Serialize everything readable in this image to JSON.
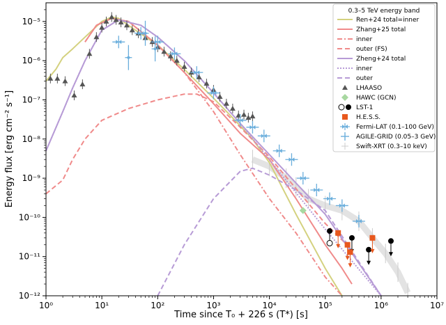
{
  "chart_data": {
    "type": "line",
    "x_scale": "log",
    "y_scale": "log",
    "xlim": [
      1,
      10000000
    ],
    "ylim": [
      1e-12,
      3e-05
    ],
    "xlabel": "Time since T₀ + 226 s (T*) [s]",
    "ylabel": "Energy flux [erg cm⁻² s⁻¹]",
    "x_ticks": [
      {
        "value": 1,
        "label": "10⁰"
      },
      {
        "value": 10,
        "label": "10¹"
      },
      {
        "value": 100,
        "label": "10²"
      },
      {
        "value": 1000,
        "label": "10³"
      },
      {
        "value": 10000,
        "label": "10⁴"
      },
      {
        "value": 100000,
        "label": "10⁵"
      },
      {
        "value": 1000000,
        "label": "10⁶"
      },
      {
        "value": 10000000,
        "label": "10⁷"
      }
    ],
    "y_ticks": [
      {
        "value": 1e-12,
        "label": "10⁻¹²"
      },
      {
        "value": 1e-11,
        "label": "10⁻¹¹"
      },
      {
        "value": 1e-10,
        "label": "10⁻¹⁰"
      },
      {
        "value": 1e-09,
        "label": "10⁻⁹"
      },
      {
        "value": 1e-08,
        "label": "10⁻⁸"
      },
      {
        "value": 1e-07,
        "label": "10⁻⁷"
      },
      {
        "value": 1e-06,
        "label": "10⁻⁶"
      },
      {
        "value": 1e-05,
        "label": "10⁻⁵"
      }
    ],
    "legend": {
      "title": "0.3–5 TeV energy band",
      "position": "top-right",
      "entries": [
        {
          "label": "Ren+24 total=inner",
          "kind": "line",
          "color": "#d4d17f",
          "dash": "solid"
        },
        {
          "label": "Zhang+25 total",
          "kind": "line",
          "color": "#f08a8a",
          "dash": "solid"
        },
        {
          "label": "inner",
          "kind": "line",
          "color": "#f08a8a",
          "dash": "dashdot"
        },
        {
          "label": "outer (FS)",
          "kind": "line",
          "color": "#f08a8a",
          "dash": "dashed"
        },
        {
          "label": "Zheng+24 total",
          "kind": "line",
          "color": "#b79bd6",
          "dash": "solid"
        },
        {
          "label": "inner",
          "kind": "line",
          "color": "#b79bd6",
          "dash": "dotted"
        },
        {
          "label": "outer",
          "kind": "line",
          "color": "#b79bd6",
          "dash": "dashed"
        },
        {
          "label": "LHAASO",
          "kind": "marker",
          "marker": "triangle",
          "color": "#555555"
        },
        {
          "label": "HAWC (GCN)",
          "kind": "marker",
          "marker": "diamond",
          "color": "#a8d8a0"
        },
        {
          "label": "LST-1",
          "kind": "marker",
          "marker": "circle-pair",
          "color": "#000000"
        },
        {
          "label": "H.E.S.S.",
          "kind": "marker",
          "marker": "square",
          "color": "#e8581e"
        },
        {
          "label": "Fermi-LAT (0.1–100 GeV)",
          "kind": "marker",
          "marker": "bowtie",
          "color": "#6aaedc"
        },
        {
          "label": "AGILE-GRID (0.05–3 GeV)",
          "kind": "marker",
          "marker": "plus",
          "color": "#6aaedc"
        },
        {
          "label": "Swift-XRT (0.3–10 keV)",
          "kind": "marker",
          "marker": "cross",
          "color": "#cccccc"
        }
      ]
    },
    "series": [
      {
        "name": "Ren+24 total=inner",
        "style": "model",
        "color": "#d4d17f",
        "dash": "solid",
        "x": [
          1,
          1.5,
          2,
          3,
          5,
          10,
          15,
          20,
          40,
          100,
          300,
          1000,
          2000,
          5000,
          10000,
          30000,
          100000,
          200000
        ],
        "y": [
          3e-07,
          6e-07,
          1.2e-06,
          2e-06,
          4e-06,
          1e-05,
          1.3e-05,
          1.2e-05,
          6e-06,
          2.5e-06,
          6e-07,
          1.1e-07,
          4e-08,
          1e-08,
          2.5e-09,
          1.2e-10,
          5e-12,
          1e-12
        ]
      },
      {
        "name": "Zhang+25 total",
        "style": "model",
        "color": "#f08a8a",
        "dash": "solid",
        "x": [
          5,
          8,
          15,
          30,
          100,
          300,
          1000,
          3000,
          10000,
          30000,
          100000,
          200000,
          300000
        ],
        "y": [
          3e-06,
          8e-06,
          1.2e-05,
          1e-05,
          2.5e-06,
          5e-07,
          8e-08,
          1.4e-08,
          3e-09,
          3e-10,
          2e-11,
          5e-12,
          2e-12
        ]
      },
      {
        "name": "Zhang+25 inner",
        "style": "model",
        "color": "#f08a8a",
        "dash": "dashdot",
        "x": [
          5,
          8,
          15,
          30,
          100,
          300,
          1000,
          3000,
          10000,
          30000,
          100000,
          200000
        ],
        "y": [
          3e-06,
          8e-06,
          1.2e-05,
          1e-05,
          2.5e-06,
          5e-07,
          5e-08,
          4e-09,
          3e-10,
          4e-11,
          3e-12,
          1e-12
        ]
      },
      {
        "name": "Zhang+25 outer (FS)",
        "style": "model",
        "color": "#f08a8a",
        "dash": "dashed",
        "x": [
          1,
          2,
          3,
          5,
          10,
          30,
          100,
          300,
          500,
          1000,
          3000,
          10000,
          100000,
          300000
        ],
        "y": [
          4e-10,
          9e-10,
          3e-09,
          1e-08,
          3e-08,
          6e-08,
          1e-07,
          1.4e-07,
          1.4e-07,
          9e-08,
          2e-08,
          3.5e-09,
          7e-11,
          1.5e-11
        ]
      },
      {
        "name": "Zheng+24 total",
        "style": "model",
        "color": "#b79bd6",
        "dash": "solid",
        "x": [
          1,
          2,
          3,
          5,
          10,
          20,
          50,
          100,
          300,
          1000,
          3000,
          10000,
          100000,
          1000000
        ],
        "y": [
          5e-09,
          5e-08,
          2e-07,
          1e-06,
          6e-06,
          1.1e-05,
          8e-06,
          4e-06,
          1e-06,
          1.5e-07,
          2.5e-08,
          4e-09,
          1.2e-10,
          1e-12
        ]
      },
      {
        "name": "Zheng+24 inner",
        "style": "model",
        "color": "#b79bd6",
        "dash": "dotted",
        "x": [
          1,
          2,
          3,
          5,
          10,
          20,
          50,
          100,
          300,
          1000,
          3000,
          10000,
          100000,
          1000000
        ],
        "y": [
          5e-09,
          5e-08,
          2e-07,
          1e-06,
          6e-06,
          1.1e-05,
          8e-06,
          4e-06,
          1e-06,
          1.5e-07,
          2.5e-08,
          3e-09,
          5e-11,
          1e-12
        ]
      },
      {
        "name": "Zheng+24 outer",
        "style": "model",
        "color": "#b79bd6",
        "dash": "dashed",
        "x": [
          100,
          300,
          1000,
          3000,
          5000,
          10000,
          30000,
          100000,
          1000000
        ],
        "y": [
          1e-12,
          2e-11,
          3e-10,
          1.5e-09,
          1.8e-09,
          1.2e-09,
          5e-10,
          1.5e-10,
          1e-12
        ]
      },
      {
        "name": "Swift-XRT (0.3–10 keV)",
        "style": "band",
        "color": "#cccccc",
        "x": [
          5000,
          10000,
          20000,
          30000,
          50000,
          100000,
          200000,
          400000,
          700000,
          1200000,
          2000000,
          3000000
        ],
        "y": [
          3e-09,
          2e-09,
          1e-09,
          6e-10,
          3e-10,
          2e-10,
          1.5e-10,
          8e-11,
          3e-11,
          1.2e-11,
          4e-12,
          1.2e-12
        ]
      },
      {
        "name": "LHAASO",
        "style": "markers",
        "marker": "triangle",
        "color": "#555555",
        "x": [
          1.2,
          1.6,
          2.2,
          3.2,
          4.5,
          6,
          8,
          10,
          12,
          15,
          18,
          22,
          28,
          35,
          45,
          60,
          80,
          100,
          130,
          170,
          220,
          300,
          400,
          550,
          750,
          1000,
          1300,
          1700,
          2200,
          2800,
          3500,
          4200,
          5000
        ],
        "y": [
          3.5e-07,
          3.5e-07,
          3e-07,
          1.3e-07,
          2.5e-07,
          1.5e-06,
          4e-06,
          7e-06,
          1e-05,
          1.3e-05,
          1.1e-05,
          9.5e-06,
          8e-06,
          6e-06,
          5e-06,
          3.8e-06,
          3e-06,
          2.2e-06,
          1.7e-06,
          1.3e-06,
          1e-06,
          7e-07,
          5e-07,
          3.8e-07,
          2.6e-07,
          1.8e-07,
          1.2e-07,
          8e-08,
          6e-08,
          4e-08,
          4.2e-08,
          3.5e-08,
          3.8e-08
        ]
      },
      {
        "name": "HAWC (GCN)",
        "style": "markers",
        "marker": "diamond",
        "color": "#a8d8a0",
        "x": [
          40000
        ],
        "y": [
          1.5e-10
        ]
      },
      {
        "name": "LST-1 detections",
        "style": "markers",
        "marker": "circle",
        "color": "#000000",
        "x": [
          120000,
          300000,
          600000,
          1500000
        ],
        "y": [
          4.5e-11,
          3e-11,
          1.5e-11,
          2.5e-11
        ]
      },
      {
        "name": "LST-1 open",
        "style": "markers",
        "marker": "circle-open",
        "color": "#000000",
        "x": [
          120000
        ],
        "y": [
          2.2e-11
        ]
      },
      {
        "name": "H.E.S.S.",
        "style": "markers",
        "marker": "square",
        "color": "#e8581e",
        "x": [
          170000,
          250000,
          280000,
          700000
        ],
        "y": [
          4e-11,
          2e-11,
          1.3e-11,
          3e-11
        ]
      },
      {
        "name": "Fermi-LAT (0.1–100 GeV)",
        "style": "markers",
        "marker": "bowtie",
        "color": "#6aaedc",
        "x": [
          20,
          50,
          100,
          200,
          500,
          1000,
          3000,
          5000,
          8000,
          15000,
          25000,
          40000,
          70000,
          120000,
          200000,
          400000
        ],
        "y": [
          3e-06,
          5e-06,
          3e-06,
          1.5e-06,
          5e-07,
          1.5e-07,
          3e-08,
          2e-08,
          1.2e-08,
          5e-09,
          3e-09,
          1e-09,
          5e-10,
          3e-10,
          2e-10,
          8e-11
        ]
      },
      {
        "name": "AGILE-GRID (0.05–3 GeV)",
        "style": "markers",
        "marker": "plus",
        "color": "#6aaedc",
        "x": [
          30,
          60,
          90
        ],
        "y": [
          1.2e-06,
          5e-06,
          2e-06
        ]
      }
    ]
  }
}
